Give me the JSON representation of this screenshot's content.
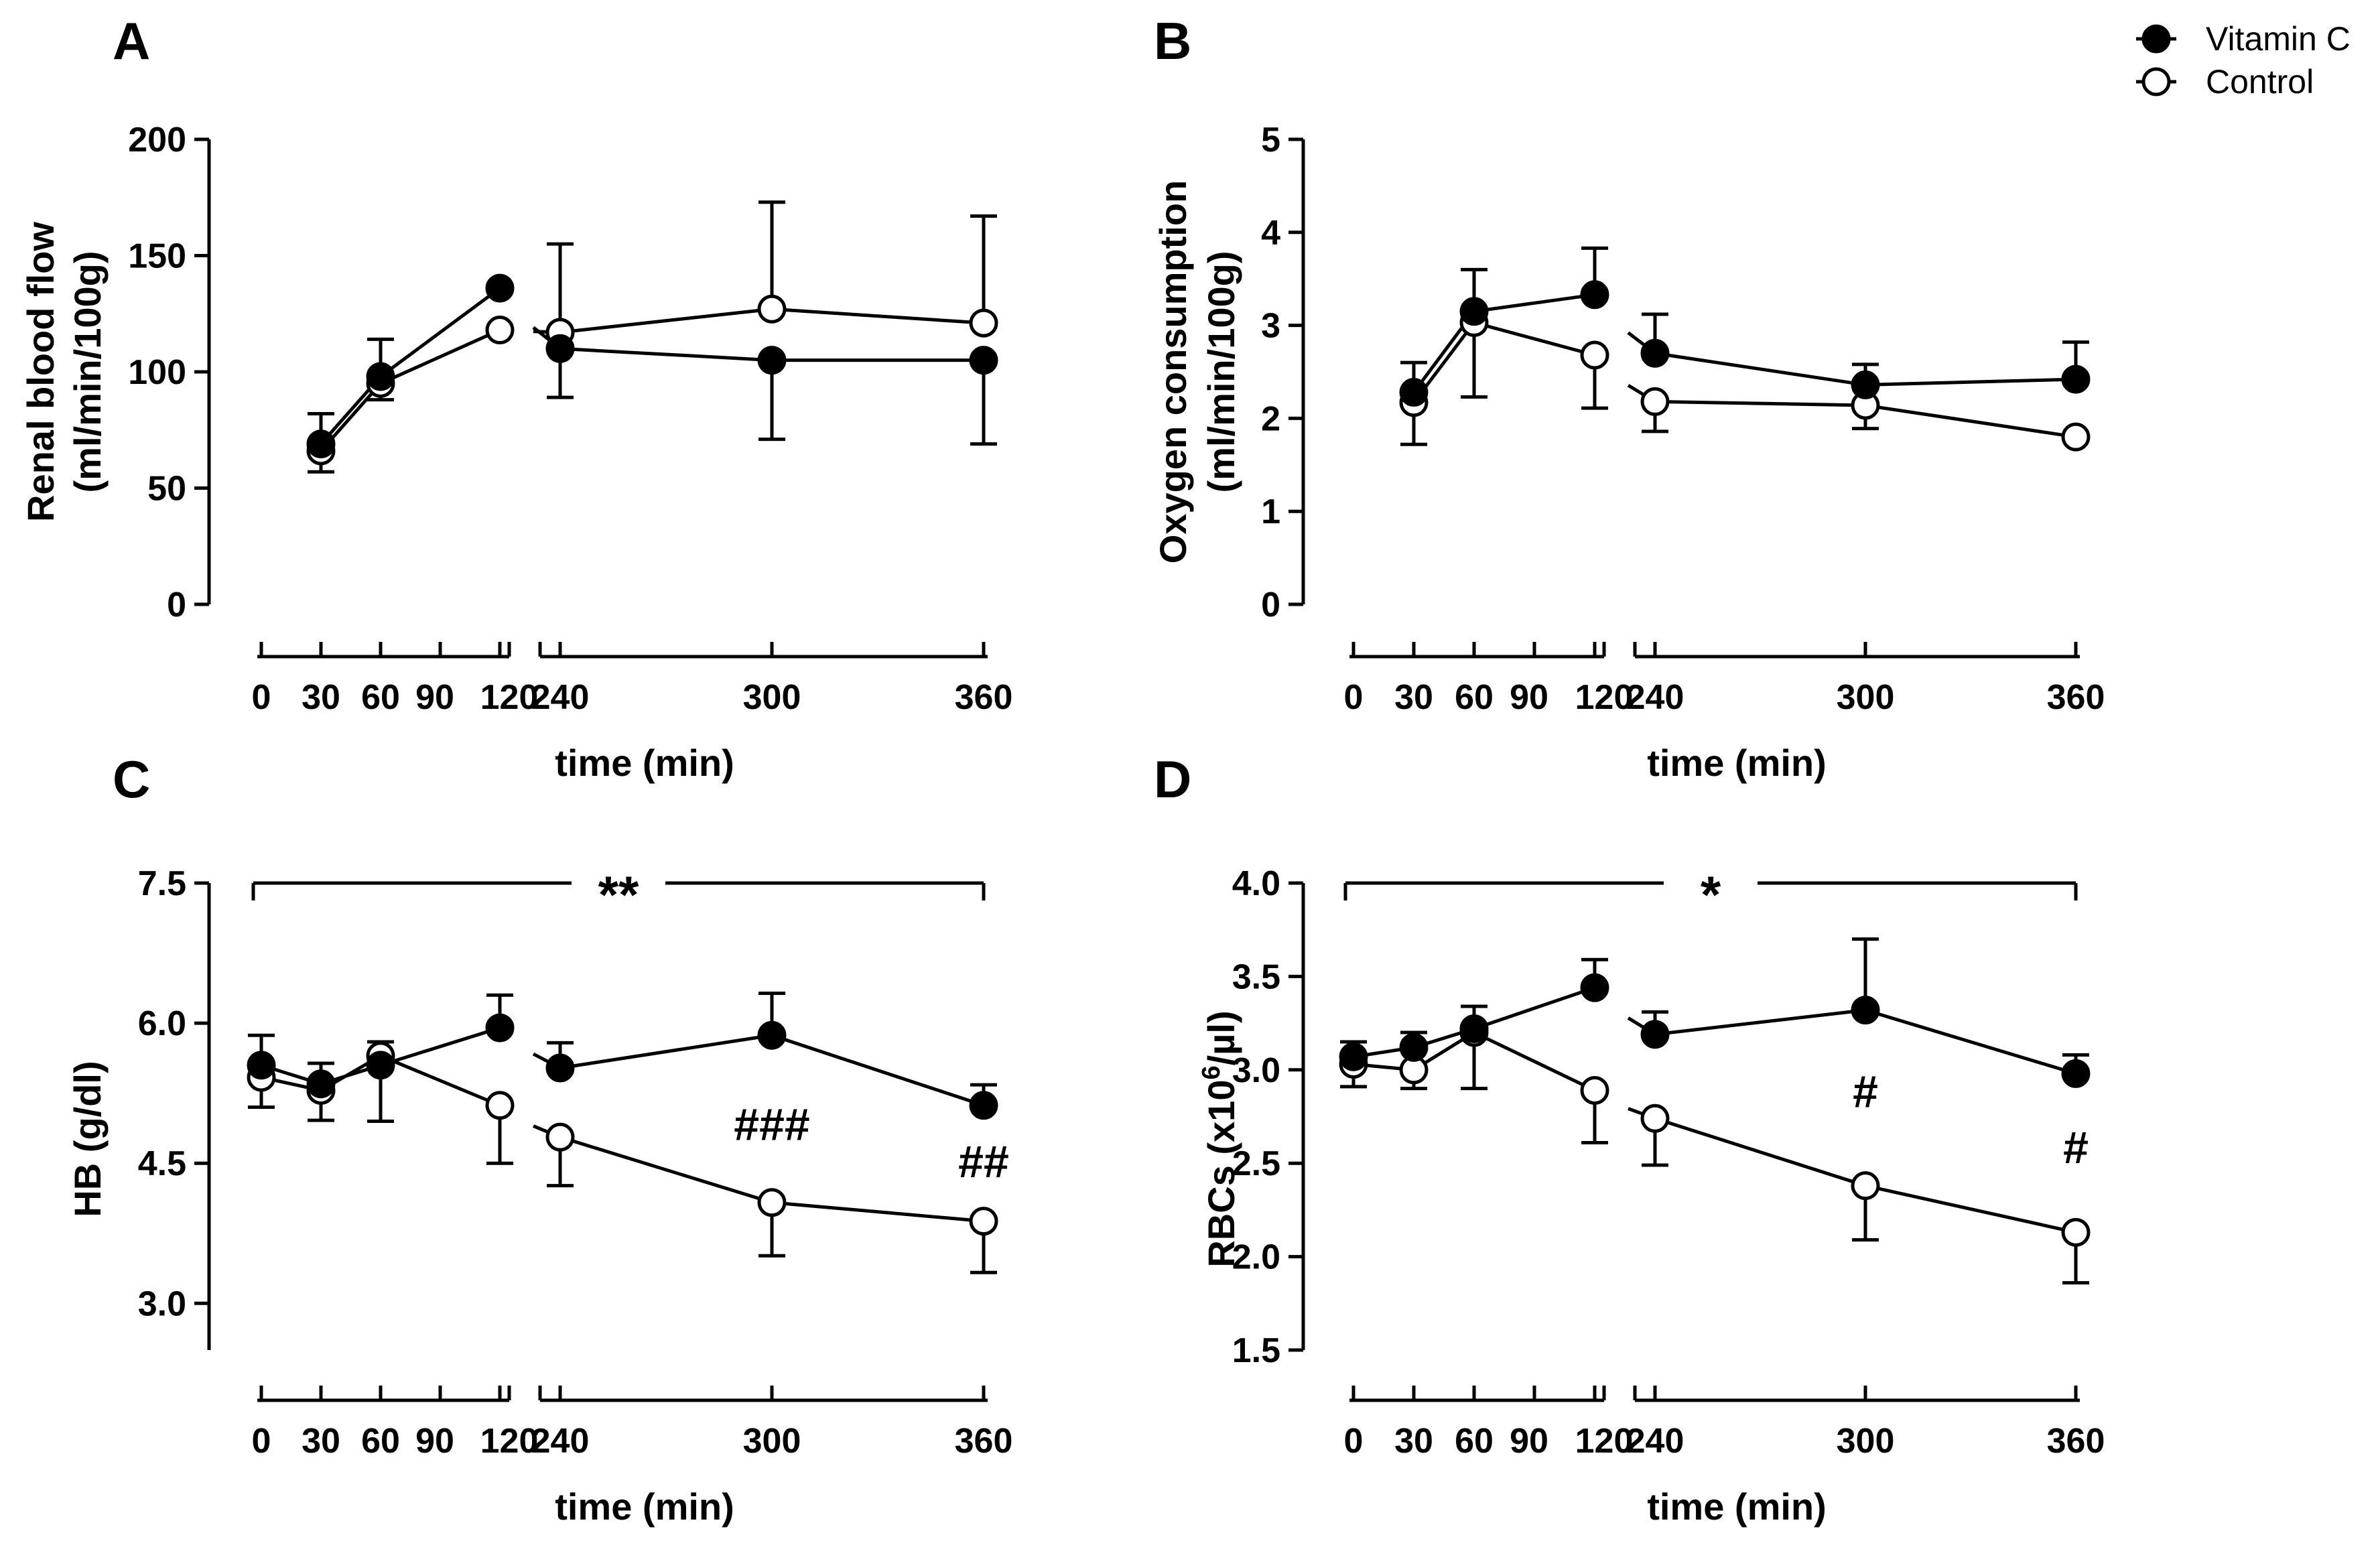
{
  "legend": {
    "items": [
      {
        "name": "Vitamin C",
        "marker": "filled"
      },
      {
        "name": "Control",
        "marker": "open"
      }
    ]
  },
  "chart_data": [
    {
      "panel": "A",
      "type": "line",
      "xlabel": "time (min)",
      "ylabel_lines": [
        "Renal blood flow",
        "(ml/min/100g)"
      ],
      "ylim": [
        0,
        200
      ],
      "yticks": [
        0,
        50,
        100,
        150,
        200
      ],
      "ytick_labels": [
        "0",
        "50",
        "100",
        "150",
        "200"
      ],
      "xtick_labels": [
        "0",
        "30",
        "60",
        "90",
        "120",
        "240",
        "300",
        "360"
      ],
      "break": {
        "axis": "x",
        "after": 120,
        "before": 240
      },
      "series": [
        {
          "name": "Vitamin C",
          "marker": "filled",
          "x": [
            30,
            60,
            120,
            240,
            300,
            360
          ],
          "y": [
            69,
            98,
            136,
            110,
            105,
            105
          ],
          "err_up": [
            13,
            16,
            0,
            0,
            0,
            0
          ],
          "err_down": [
            0,
            0,
            0,
            21,
            34,
            36
          ]
        },
        {
          "name": "Control",
          "marker": "open",
          "x": [
            30,
            60,
            120,
            240,
            300,
            360
          ],
          "y": [
            66,
            95,
            118,
            117,
            127,
            121
          ],
          "err_up": [
            0,
            0,
            0,
            38,
            46,
            46
          ],
          "err_down": [
            9,
            7,
            0,
            0,
            0,
            0
          ]
        }
      ],
      "annotations": []
    },
    {
      "panel": "B",
      "type": "line",
      "xlabel": "time (min)",
      "ylabel_lines": [
        "Oxygen consumption",
        "(ml/min/100g)"
      ],
      "ylim": [
        0,
        5
      ],
      "yticks": [
        0,
        1,
        2,
        3,
        4,
        5
      ],
      "ytick_labels": [
        "0",
        "1",
        "2",
        "3",
        "4",
        "5"
      ],
      "xtick_labels": [
        "0",
        "30",
        "60",
        "90",
        "120",
        "240",
        "300",
        "360"
      ],
      "break": {
        "axis": "x",
        "after": 120,
        "before": 240
      },
      "series": [
        {
          "name": "Vitamin C",
          "marker": "filled",
          "x": [
            30,
            60,
            120,
            240,
            300,
            360
          ],
          "y": [
            2.28,
            3.15,
            3.33,
            2.7,
            2.36,
            2.42
          ],
          "err_up": [
            0.32,
            0.45,
            0.5,
            0.42,
            0.22,
            0.4
          ],
          "err_down": [
            0,
            0,
            0,
            0,
            0,
            0
          ]
        },
        {
          "name": "Control",
          "marker": "open",
          "x": [
            30,
            60,
            120,
            240,
            300,
            360
          ],
          "y": [
            2.17,
            3.03,
            2.68,
            2.18,
            2.14,
            1.8
          ],
          "err_up": [
            0,
            0,
            0,
            0,
            0,
            0
          ],
          "err_down": [
            0.45,
            0.8,
            0.57,
            0.32,
            0.25,
            0
          ]
        }
      ],
      "annotations": []
    },
    {
      "panel": "C",
      "type": "line",
      "xlabel": "time (min)",
      "ylabel_lines": [
        "HB (g/dl)"
      ],
      "ylim": [
        2.5,
        7.5
      ],
      "yticks": [
        3.0,
        4.5,
        6.0,
        7.5
      ],
      "ytick_labels": [
        "3.0",
        "4.5",
        "6.0",
        "7.5"
      ],
      "xtick_labels": [
        "0",
        "30",
        "60",
        "90",
        "120",
        "240",
        "300",
        "360"
      ],
      "break": {
        "axis": "x",
        "after": 120,
        "before": 240
      },
      "series": [
        {
          "name": "Vitamin C",
          "marker": "filled",
          "x": [
            0,
            30,
            60,
            120,
            240,
            300,
            360
          ],
          "y": [
            5.55,
            5.35,
            5.55,
            5.95,
            5.52,
            5.87,
            5.12
          ],
          "err_up": [
            0.32,
            0.22,
            0.25,
            0.35,
            0.27,
            0.45,
            0.22
          ],
          "err_down": [
            0,
            0,
            0.6,
            0,
            0,
            0,
            0
          ]
        },
        {
          "name": "Control",
          "marker": "open",
          "x": [
            0,
            30,
            60,
            120,
            240,
            300,
            360
          ],
          "y": [
            5.42,
            5.28,
            5.65,
            5.12,
            4.78,
            4.08,
            3.88
          ],
          "err_up": [
            0,
            0,
            0.15,
            0,
            0,
            0,
            0
          ],
          "err_down": [
            0.32,
            0.32,
            0,
            0.62,
            0.52,
            0.57,
            0.55
          ]
        }
      ],
      "annotations": [
        {
          "text": "###",
          "x": 300,
          "y": 4.75
        },
        {
          "text": "##",
          "x": 360,
          "y": 4.35
        }
      ],
      "significance_bracket": {
        "text": "**",
        "x1": 0,
        "x2": 360,
        "y": 7.5
      }
    },
    {
      "panel": "D",
      "type": "line",
      "xlabel": "time (min)",
      "ylabel_lines": [
        "RBCs (x10",
        "6",
        "/µl)"
      ],
      "ylim": [
        1.5,
        4.0
      ],
      "yticks": [
        1.5,
        2.0,
        2.5,
        3.0,
        3.5,
        4.0
      ],
      "ytick_labels": [
        "1.5",
        "2.0",
        "2.5",
        "3.0",
        "3.5",
        "4.0"
      ],
      "xtick_labels": [
        "0",
        "30",
        "60",
        "90",
        "120",
        "240",
        "300",
        "360"
      ],
      "break": {
        "axis": "x",
        "after": 120,
        "before": 240
      },
      "series": [
        {
          "name": "Vitamin C",
          "marker": "filled",
          "x": [
            0,
            30,
            60,
            120,
            240,
            300,
            360
          ],
          "y": [
            3.07,
            3.12,
            3.22,
            3.44,
            3.19,
            3.32,
            2.98
          ],
          "err_up": [
            0.08,
            0.08,
            0.12,
            0.15,
            0.12,
            0.38,
            0.1
          ],
          "err_down": [
            0,
            0,
            0,
            0,
            0,
            0,
            0
          ]
        },
        {
          "name": "Control",
          "marker": "open",
          "x": [
            0,
            30,
            60,
            120,
            240,
            300,
            360
          ],
          "y": [
            3.03,
            3.0,
            3.2,
            2.89,
            2.74,
            2.38,
            2.13
          ],
          "err_up": [
            0,
            0,
            0,
            0,
            0,
            0,
            0
          ],
          "err_down": [
            0.12,
            0.1,
            0.3,
            0.28,
            0.25,
            0.29,
            0.27
          ]
        }
      ],
      "annotations": [
        {
          "text": "#",
          "x": 300,
          "y": 2.8
        },
        {
          "text": "#",
          "x": 360,
          "y": 2.5
        }
      ],
      "significance_bracket": {
        "text": "*",
        "x1": 0,
        "x2": 360,
        "y": 4.0
      }
    }
  ]
}
